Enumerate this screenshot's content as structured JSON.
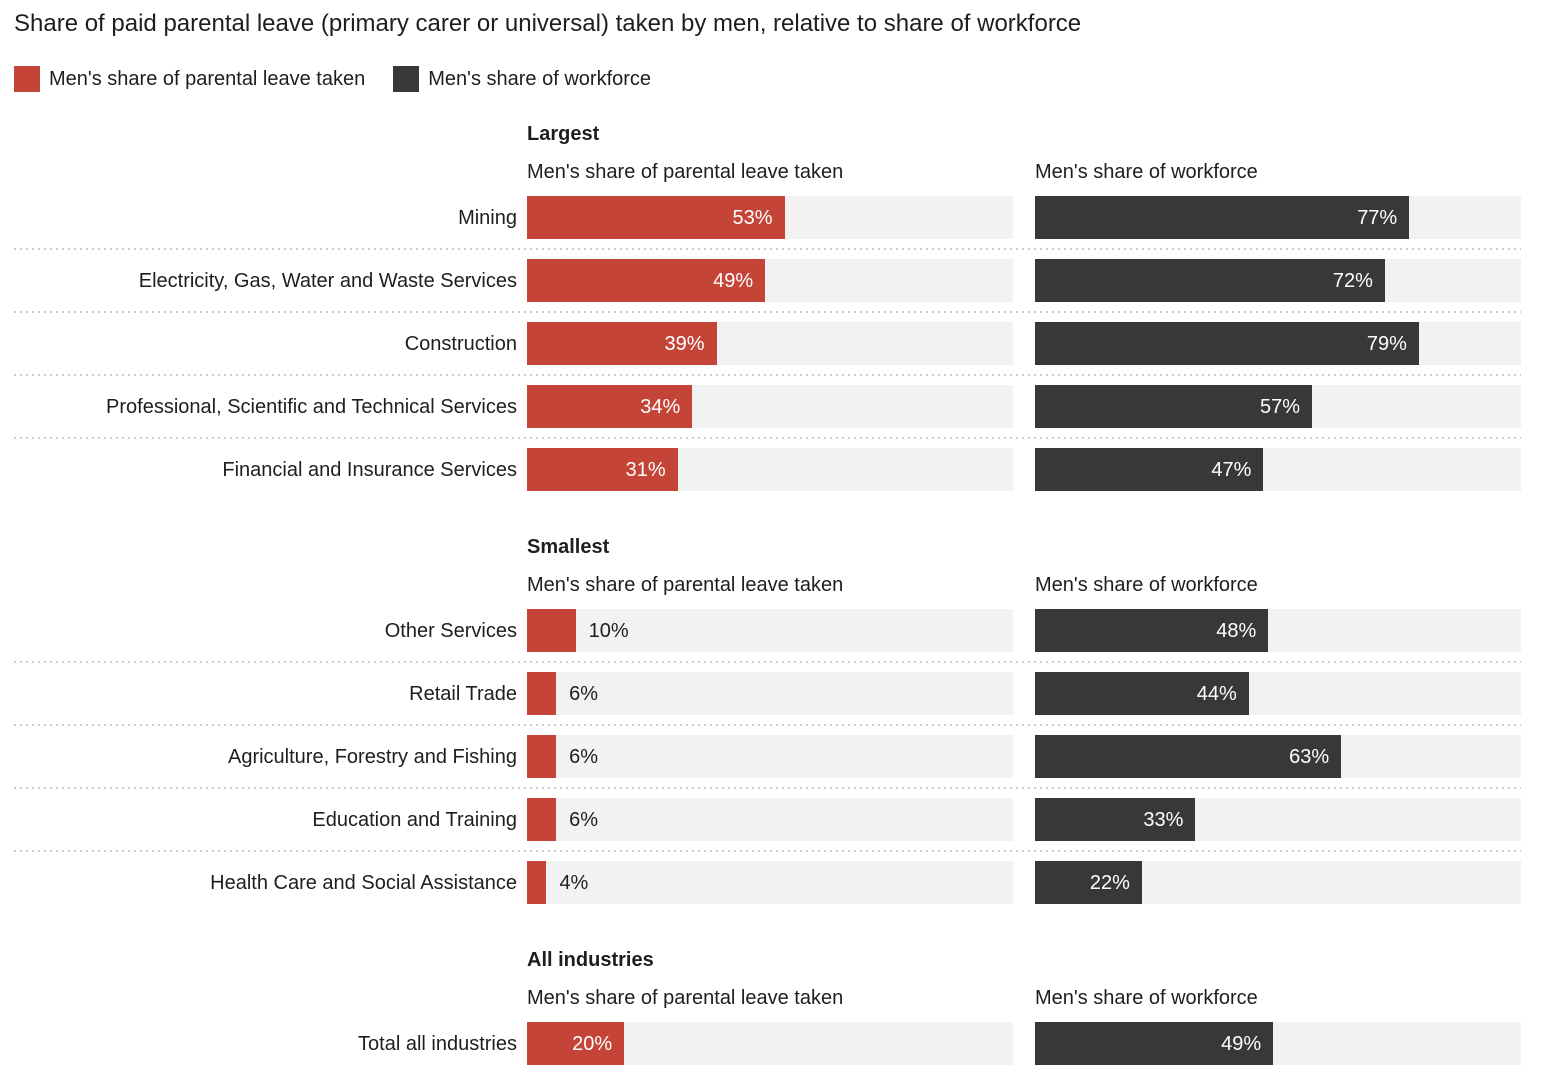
{
  "title": "Share of paid parental leave (primary carer or universal) taken by men, relative to share of workforce",
  "legend": [
    {
      "label": "Men's share of parental leave taken",
      "color": "#c44538"
    },
    {
      "label": "Men's share of workforce",
      "color": "#383838"
    }
  ],
  "colors": {
    "leave": "#c44538",
    "workforce": "#383838",
    "track": "#f2f2f2",
    "separator": "#cccccc",
    "text": "#1e1e1e",
    "value_inside": "#ffffff"
  },
  "chart_data": {
    "type": "bar",
    "orientation": "horizontal",
    "unit": "%",
    "xlim": [
      0,
      100
    ],
    "grid": false,
    "legend_position": "top",
    "series_names": [
      "Men's share of parental leave taken",
      "Men's share of workforce"
    ],
    "sections": [
      {
        "heading": "Largest",
        "rows": [
          {
            "label": "Mining",
            "leave": 53,
            "workforce": 77
          },
          {
            "label": "Electricity, Gas, Water and Waste Services",
            "leave": 49,
            "workforce": 72
          },
          {
            "label": "Construction",
            "leave": 39,
            "workforce": 79
          },
          {
            "label": "Professional, Scientific and Technical Services",
            "leave": 34,
            "workforce": 57
          },
          {
            "label": "Financial and Insurance Services",
            "leave": 31,
            "workforce": 47
          }
        ]
      },
      {
        "heading": "Smallest",
        "rows": [
          {
            "label": "Other Services",
            "leave": 10,
            "workforce": 48
          },
          {
            "label": "Retail Trade",
            "leave": 6,
            "workforce": 44
          },
          {
            "label": "Agriculture, Forestry and Fishing",
            "leave": 6,
            "workforce": 63
          },
          {
            "label": "Education and Training",
            "leave": 6,
            "workforce": 33
          },
          {
            "label": "Health Care and Social Assistance",
            "leave": 4,
            "workforce": 22
          }
        ]
      },
      {
        "heading": "All industries",
        "rows": [
          {
            "label": "Total all industries",
            "leave": 20,
            "workforce": 49
          }
        ]
      }
    ]
  }
}
